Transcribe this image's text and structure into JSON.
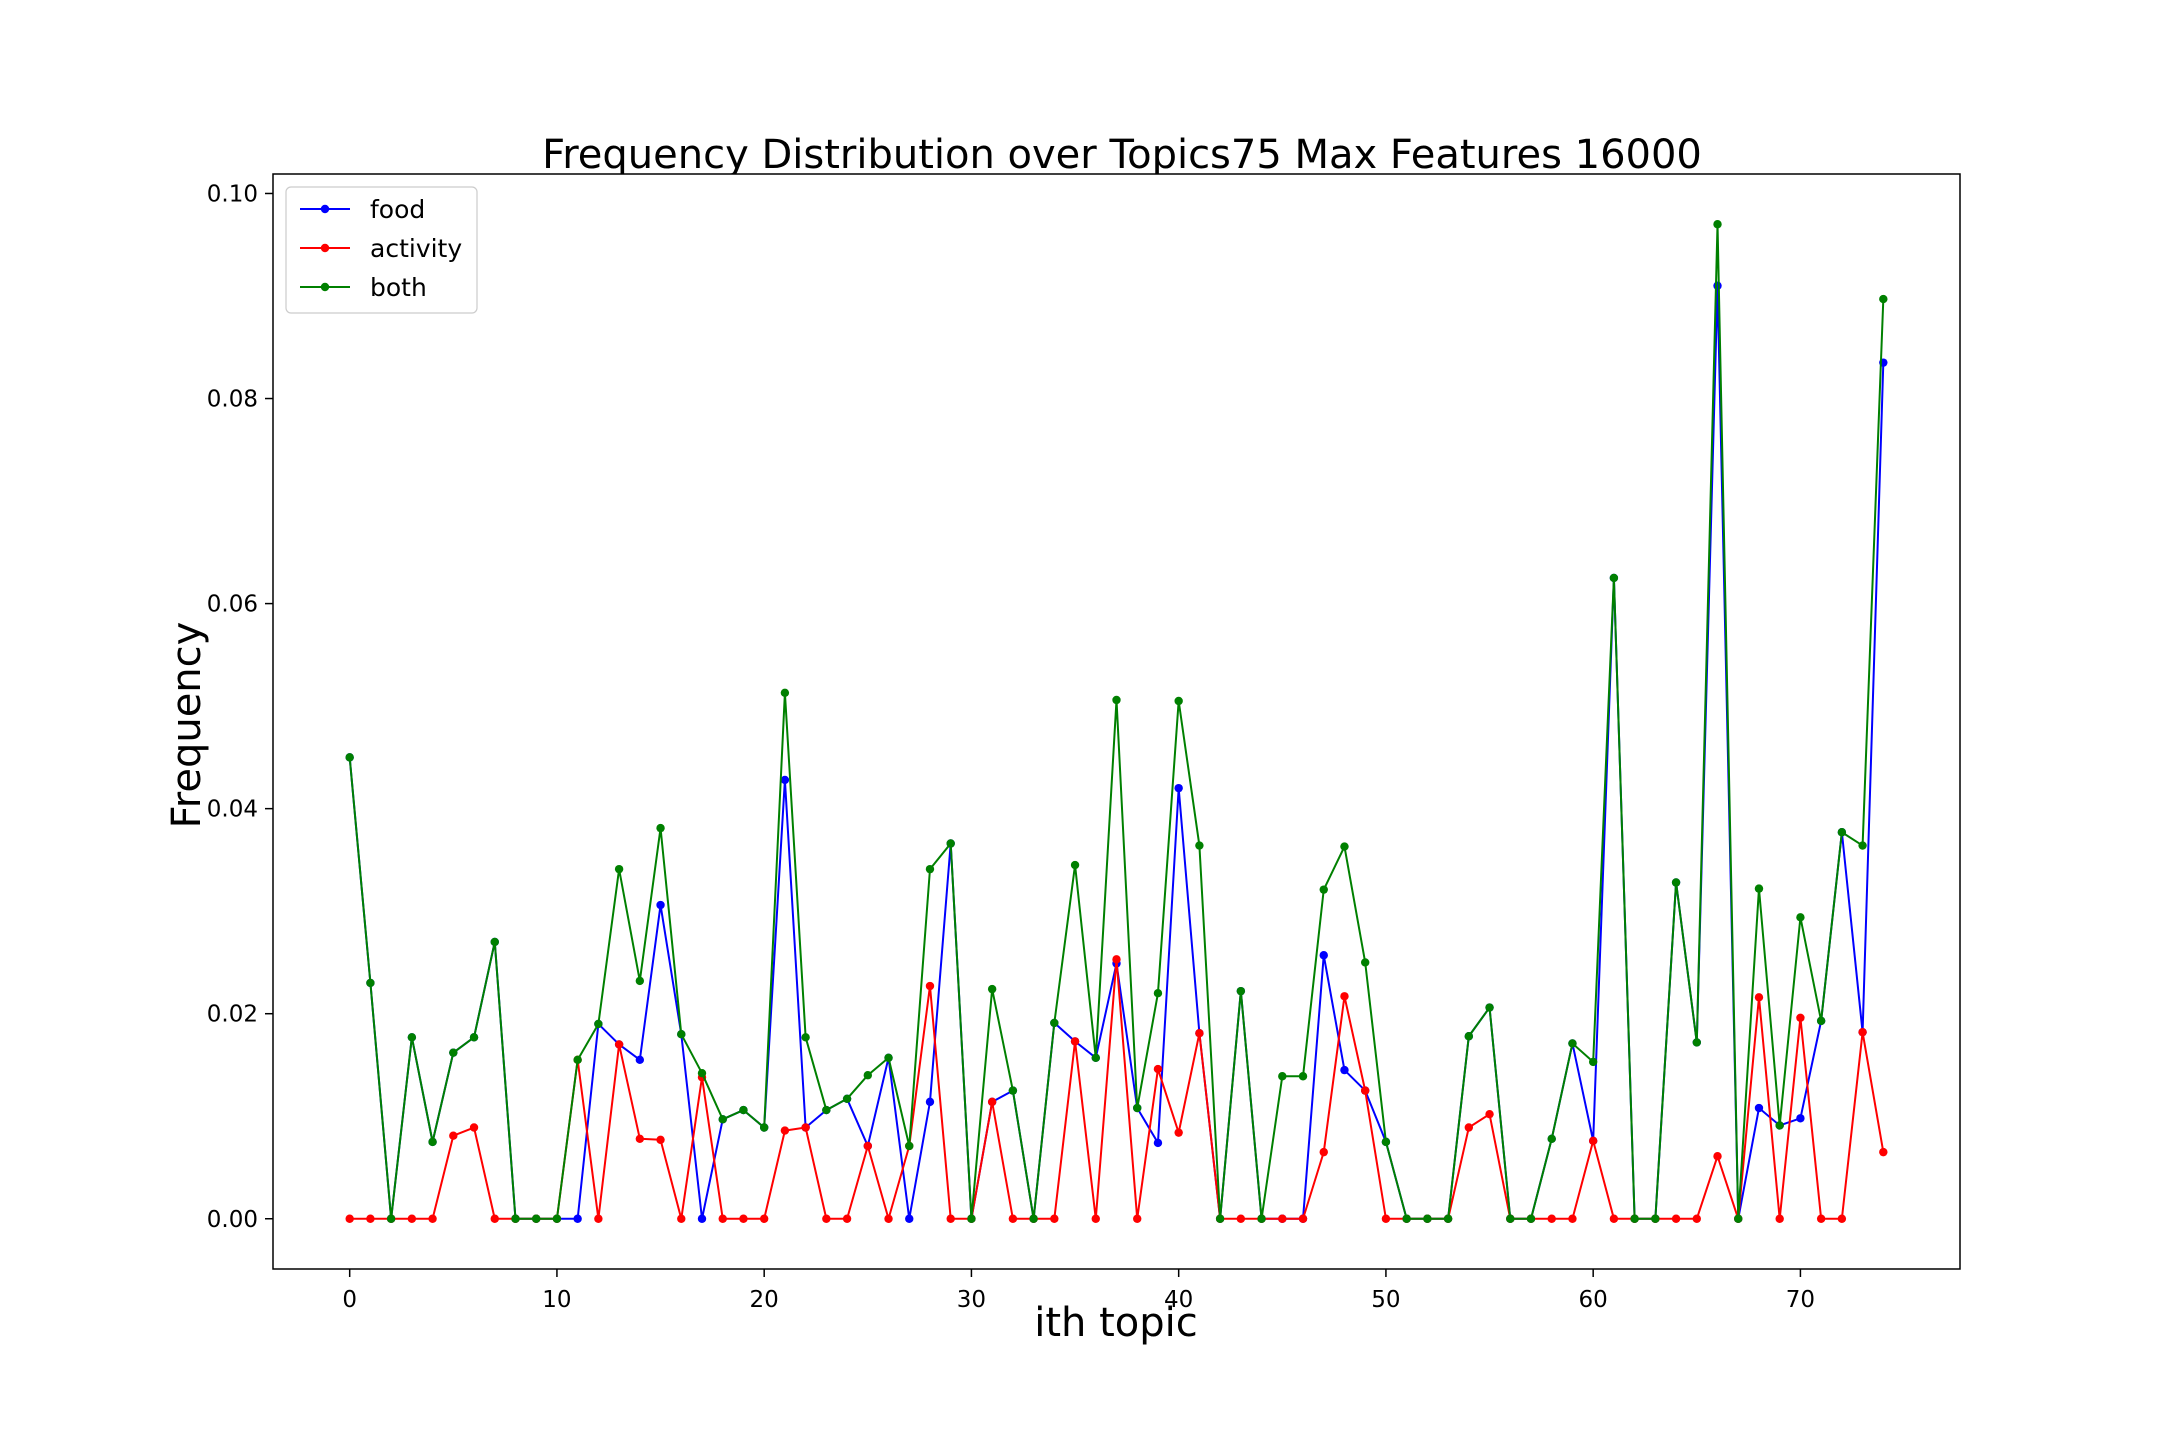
{
  "chart_data": {
    "type": "line",
    "title": "Frequency Distribution over Topics75 Max Features 16000",
    "xlabel": "ith topic",
    "ylabel": "Frequency",
    "xlim": [
      -3.7,
      77.7
    ],
    "ylim": [
      -0.0049,
      0.1019
    ],
    "xticks": [
      0,
      10,
      20,
      30,
      40,
      50,
      60,
      70
    ],
    "xtick_labels": [
      "0",
      "10",
      "20",
      "30",
      "40",
      "50",
      "60",
      "70"
    ],
    "yticks": [
      0.0,
      0.02,
      0.04,
      0.06,
      0.08,
      0.1
    ],
    "ytick_labels": [
      "0.00",
      "0.02",
      "0.04",
      "0.06",
      "0.08",
      "0.10"
    ],
    "grid": false,
    "legend_position": "top-left",
    "x": [
      0,
      1,
      2,
      3,
      4,
      5,
      6,
      7,
      8,
      9,
      10,
      11,
      12,
      13,
      14,
      15,
      16,
      17,
      18,
      19,
      20,
      21,
      22,
      23,
      24,
      25,
      26,
      27,
      28,
      29,
      30,
      31,
      32,
      33,
      34,
      35,
      36,
      37,
      38,
      39,
      40,
      41,
      42,
      43,
      44,
      45,
      46,
      47,
      48,
      49,
      50,
      51,
      52,
      53,
      54,
      55,
      56,
      57,
      58,
      59,
      60,
      61,
      62,
      63,
      64,
      65,
      66,
      67,
      68,
      69,
      70,
      71,
      72,
      73,
      74
    ],
    "series": [
      {
        "name": "food",
        "color": "#0000ff",
        "values": [
          0.045,
          0.023,
          0,
          0.0177,
          0.0075,
          0.0162,
          0.0177,
          0.027,
          0,
          0,
          0,
          0,
          0.019,
          0.017,
          0.0155,
          0.0306,
          0.018,
          0,
          0.0097,
          0.0106,
          0.0089,
          0.0428,
          0.0089,
          0.0106,
          0.0117,
          0.0071,
          0.0157,
          0,
          0.0114,
          0.0366,
          0,
          0.0114,
          0.0125,
          0,
          0.0191,
          0.0173,
          0.0157,
          0.0249,
          0.0108,
          0.0074,
          0.042,
          0.0181,
          0,
          0.0222,
          0,
          0,
          0,
          0.0257,
          0.0145,
          0.0125,
          0.0075,
          0,
          0,
          0,
          0.0178,
          0.0206,
          0,
          0,
          0.0078,
          0.0171,
          0.0076,
          0.0625,
          0,
          0,
          0.0328,
          0.0172,
          0.091,
          0,
          0.0108,
          0.0091,
          0.0098,
          0.0193,
          0.0377,
          0.0182,
          0.0835
        ]
      },
      {
        "name": "activity",
        "color": "#ff0000",
        "values": [
          0,
          0,
          0,
          0,
          0,
          0.0081,
          0.0089,
          0,
          0,
          0,
          0,
          0.0155,
          0,
          0.017,
          0.0078,
          0.0077,
          0,
          0.0138,
          0,
          0,
          0,
          0.0086,
          0.0089,
          0,
          0,
          0.0071,
          0,
          0.0071,
          0.0227,
          0,
          0,
          0.0114,
          0,
          0,
          0,
          0.0173,
          0,
          0.0253,
          0,
          0.0146,
          0.0084,
          0.0181,
          0,
          0,
          0,
          0,
          0,
          0.0065,
          0.0217,
          0.0125,
          0,
          0,
          0,
          0,
          0.0089,
          0.0102,
          0,
          0,
          0,
          0,
          0.0076,
          0,
          0,
          0,
          0,
          0,
          0.0061,
          0,
          0.0216,
          0,
          0.0196,
          0,
          0,
          0.0182,
          0.0065
        ]
      },
      {
        "name": "both",
        "color": "#008000",
        "values": [
          0.045,
          0.023,
          0,
          0.0177,
          0.0075,
          0.0162,
          0.0177,
          0.027,
          0,
          0,
          0,
          0.0155,
          0.019,
          0.0341,
          0.0232,
          0.0381,
          0.018,
          0.0142,
          0.0097,
          0.0106,
          0.0089,
          0.0513,
          0.0177,
          0.0106,
          0.0117,
          0.014,
          0.0157,
          0.0071,
          0.0341,
          0.0366,
          0,
          0.0224,
          0.0125,
          0,
          0.0191,
          0.0345,
          0.0157,
          0.0506,
          0.0108,
          0.022,
          0.0505,
          0.0364,
          0,
          0.0222,
          0,
          0.0139,
          0.0139,
          0.0321,
          0.0363,
          0.025,
          0.0075,
          0,
          0,
          0,
          0.0178,
          0.0206,
          0,
          0,
          0.0078,
          0.0171,
          0.0153,
          0.0625,
          0,
          0,
          0.0328,
          0.0172,
          0.097,
          0,
          0.0322,
          0.0091,
          0.0294,
          0.0193,
          0.0377,
          0.0364,
          0.0897
        ]
      }
    ]
  }
}
